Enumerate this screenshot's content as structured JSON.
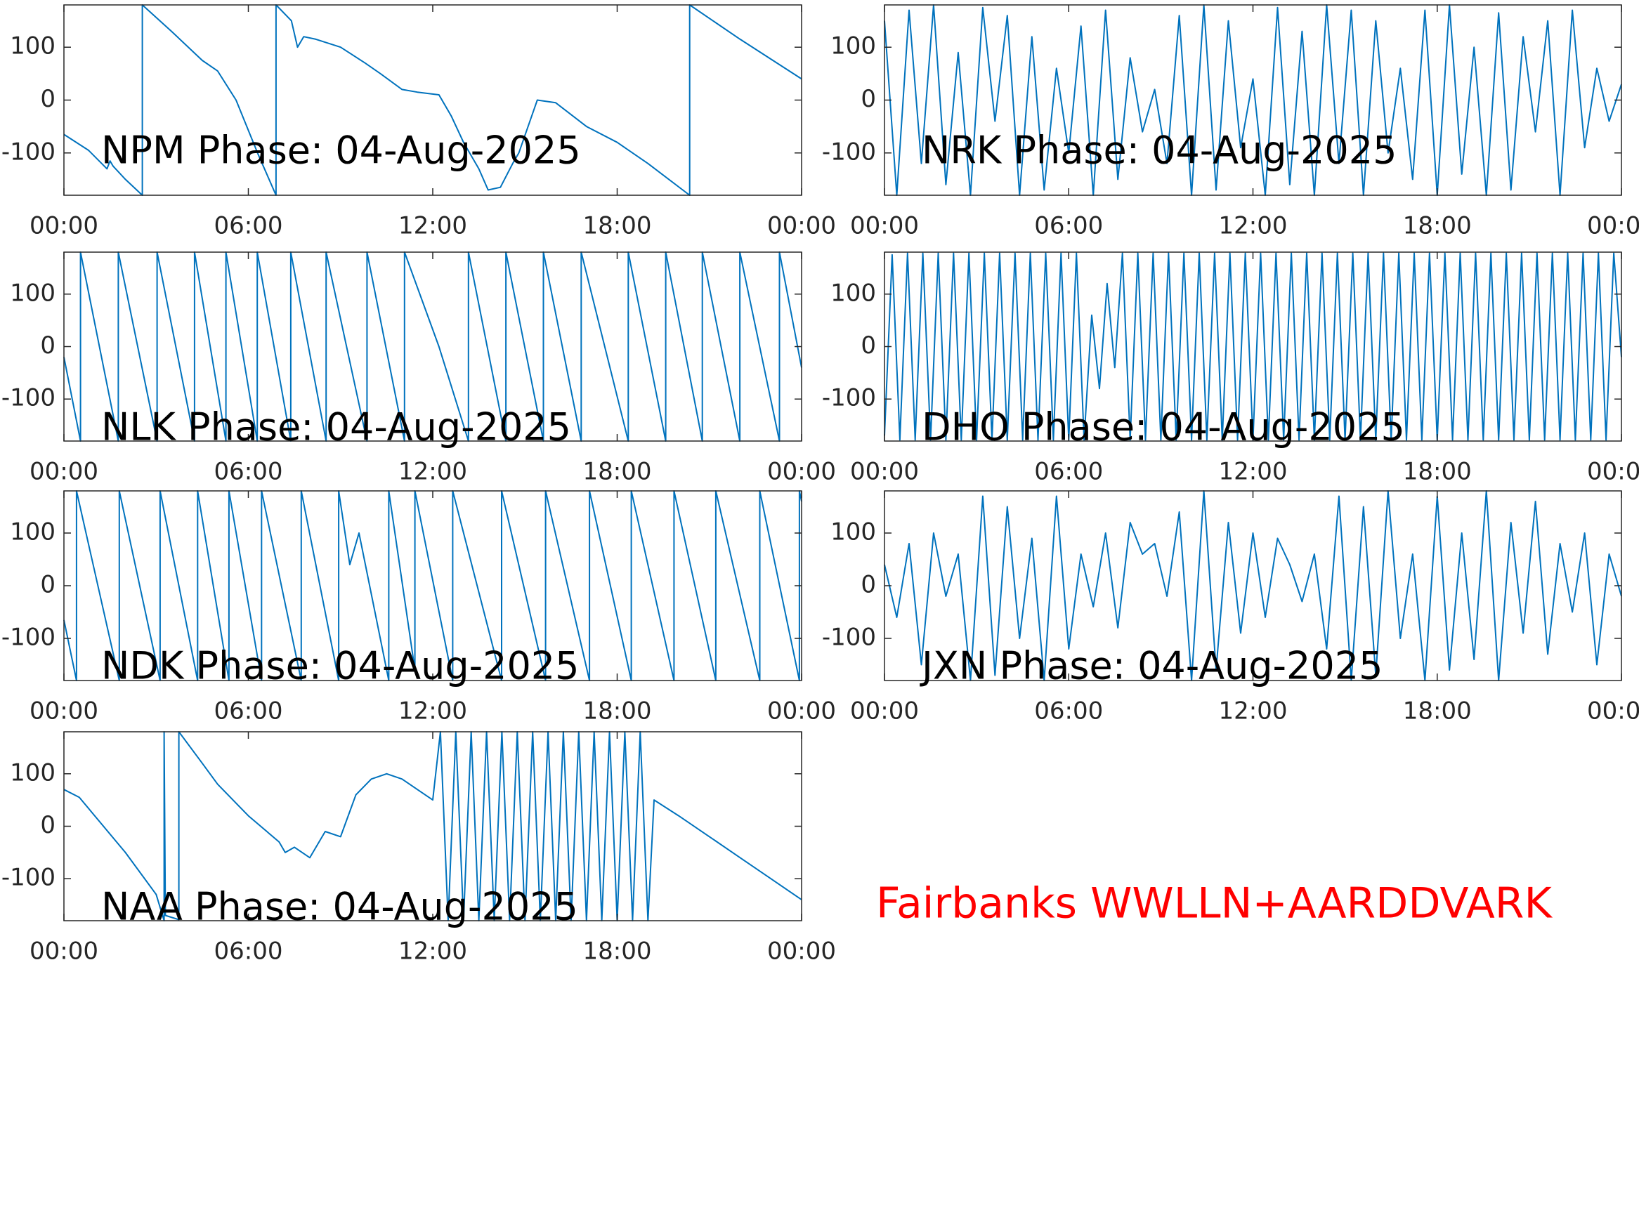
{
  "caption": "Fairbanks WWLLN+AARDDVARK",
  "chart_data": [
    {
      "type": "line",
      "title": "NPM Phase: 04-Aug-2025",
      "color": "#0072bd",
      "xlim": [
        0,
        24
      ],
      "ylim": [
        -180,
        180
      ],
      "xticks": [
        {
          "value": 0,
          "label": "00:00"
        },
        {
          "value": 6,
          "label": "06:00"
        },
        {
          "value": 12,
          "label": "12:00"
        },
        {
          "value": 18,
          "label": "18:00"
        },
        {
          "value": 24,
          "label": "00:00"
        }
      ],
      "yticks": [
        -100,
        0,
        100
      ],
      "x": [
        0,
        0.8,
        1.4,
        1.5,
        1.6,
        2.0,
        2.55,
        2.55,
        3.5,
        4.5,
        5.0,
        5.6,
        6.3,
        6.9,
        6.9,
        7.4,
        7.6,
        7.8,
        8.2,
        9.0,
        9.8,
        10.3,
        11.0,
        11.5,
        12.2,
        12.6,
        13.0,
        13.5,
        13.8,
        14.2,
        14.6,
        14.8,
        15.4,
        16.0,
        17.0,
        18.0,
        19.0,
        20.36,
        20.36,
        22.0,
        24
      ],
      "values": [
        -65,
        -95,
        -130,
        -115,
        -125,
        -150,
        -180,
        180,
        130,
        75,
        55,
        0,
        -100,
        -180,
        180,
        150,
        100,
        120,
        115,
        100,
        70,
        50,
        20,
        15,
        10,
        -30,
        -80,
        -130,
        -170,
        -165,
        -120,
        -100,
        0,
        -5,
        -50,
        -80,
        -120,
        -180,
        180,
        115,
        40
      ]
    },
    {
      "type": "line",
      "title": "NRK Phase: 04-Aug-2025",
      "color": "#0072bd",
      "xlim": [
        0,
        24
      ],
      "ylim": [
        -180,
        180
      ],
      "xticks": [
        {
          "value": 0,
          "label": "00:00"
        },
        {
          "value": 6,
          "label": "06:00"
        },
        {
          "value": 12,
          "label": "12:00"
        },
        {
          "value": 18,
          "label": "18:00"
        },
        {
          "value": 24,
          "label": "00:00"
        }
      ],
      "yticks": [
        -100,
        0,
        100
      ],
      "x": [
        0,
        0.4,
        0.8,
        1.2,
        1.6,
        2,
        2.4,
        2.8,
        3.2,
        3.6,
        4,
        4.4,
        4.8,
        5.2,
        5.6,
        6,
        6.4,
        6.8,
        7.2,
        7.6,
        8,
        8.4,
        8.8,
        9.2,
        9.6,
        10,
        10.4,
        10.8,
        11.2,
        11.6,
        12,
        12.4,
        12.8,
        13.2,
        13.6,
        14,
        14.4,
        14.8,
        15.2,
        15.6,
        16,
        16.4,
        16.8,
        17.2,
        17.6,
        18,
        18.4,
        18.8,
        19.2,
        19.6,
        20,
        20.4,
        20.8,
        21.2,
        21.6,
        22,
        22.4,
        22.8,
        23.2,
        23.6,
        24
      ],
      "values": [
        150,
        -180,
        170,
        -120,
        180,
        -160,
        90,
        -180,
        175,
        -40,
        160,
        -180,
        120,
        -170,
        60,
        -100,
        140,
        -180,
        170,
        -150,
        80,
        -60,
        20,
        -120,
        160,
        -180,
        180,
        -170,
        150,
        -90,
        40,
        -180,
        175,
        -160,
        130,
        -180,
        180,
        -120,
        170,
        -180,
        150,
        -100,
        60,
        -150,
        170,
        -180,
        180,
        -140,
        100,
        -180,
        165,
        -170,
        120,
        -60,
        150,
        -180,
        170,
        -90,
        60,
        -40,
        30
      ]
    },
    {
      "type": "line",
      "title": "NLK Phase: 04-Aug-2025",
      "color": "#0072bd",
      "xlim": [
        0,
        24
      ],
      "ylim": [
        -180,
        180
      ],
      "xticks": [
        {
          "value": 0,
          "label": "00:00"
        },
        {
          "value": 6,
          "label": "06:00"
        },
        {
          "value": 12,
          "label": "12:00"
        },
        {
          "value": 18,
          "label": "18:00"
        },
        {
          "value": 24,
          "label": "00:00"
        }
      ],
      "yticks": [
        -100,
        0,
        100
      ],
      "x": [
        0,
        0.54,
        0.54,
        1.77,
        1.77,
        3.03,
        3.03,
        4.25,
        4.25,
        5.27,
        5.27,
        6.29,
        6.29,
        7.38,
        7.38,
        8.53,
        8.53,
        9.86,
        9.86,
        11.08,
        11.08,
        12.2,
        13.16,
        13.16,
        14.38,
        14.38,
        15.6,
        15.6,
        16.83,
        16.83,
        18.36,
        18.36,
        19.58,
        19.58,
        20.77,
        20.77,
        21.99,
        21.99,
        23.28,
        23.28,
        24
      ],
      "values": [
        -20,
        -180,
        180,
        -180,
        180,
        -180,
        180,
        -180,
        180,
        -180,
        180,
        -180,
        180,
        -180,
        180,
        -180,
        180,
        -180,
        180,
        -180,
        180,
        0,
        -180,
        180,
        -180,
        180,
        -180,
        180,
        -180,
        180,
        -180,
        180,
        -180,
        180,
        -180,
        180,
        -180,
        180,
        -180,
        180,
        -40
      ]
    },
    {
      "type": "line",
      "title": "DHO Phase: 04-Aug-2025",
      "color": "#0072bd",
      "xlim": [
        0,
        24
      ],
      "ylim": [
        -180,
        180
      ],
      "xticks": [
        {
          "value": 0,
          "label": "00:00"
        },
        {
          "value": 6,
          "label": "06:00"
        },
        {
          "value": 12,
          "label": "12:00"
        },
        {
          "value": 18,
          "label": "18:00"
        },
        {
          "value": 24,
          "label": "00:00"
        }
      ],
      "yticks": [
        -100,
        0,
        100
      ],
      "x": [
        0,
        0.25,
        0.5,
        0.75,
        1,
        1.25,
        1.5,
        1.75,
        2,
        2.25,
        2.5,
        2.75,
        3,
        3.25,
        3.5,
        3.75,
        4,
        4.25,
        4.5,
        4.75,
        5,
        5.25,
        5.5,
        5.75,
        6,
        6.25,
        6.5,
        6.75,
        7,
        7.25,
        7.5,
        7.75,
        8,
        8.25,
        8.5,
        8.75,
        9,
        9.25,
        9.5,
        9.75,
        10,
        10.25,
        10.5,
        10.75,
        11,
        11.25,
        11.5,
        11.75,
        12,
        12.25,
        12.5,
        12.75,
        13,
        13.25,
        13.5,
        13.75,
        14,
        14.25,
        14.5,
        14.75,
        15,
        15.25,
        15.5,
        15.75,
        16,
        16.25,
        16.5,
        16.75,
        17,
        17.25,
        17.5,
        17.75,
        18,
        18.25,
        18.5,
        18.75,
        19,
        19.25,
        19.5,
        19.75,
        20,
        20.25,
        20.5,
        20.75,
        21,
        21.25,
        21.5,
        21.75,
        22,
        22.25,
        22.5,
        22.75,
        23,
        23.25,
        23.5,
        23.75,
        24
      ],
      "values": [
        -170,
        175,
        -178,
        178,
        -178,
        178,
        -178,
        178,
        -178,
        178,
        -178,
        178,
        -178,
        178,
        -178,
        178,
        -178,
        178,
        -178,
        178,
        -178,
        178,
        -178,
        178,
        -178,
        178,
        -178,
        60,
        -80,
        120,
        -40,
        178,
        -178,
        178,
        -178,
        178,
        -178,
        178,
        -178,
        178,
        -178,
        178,
        -178,
        178,
        -178,
        178,
        -178,
        178,
        -178,
        178,
        -178,
        178,
        -178,
        178,
        -178,
        178,
        -178,
        178,
        -178,
        178,
        -178,
        178,
        -178,
        178,
        -178,
        178,
        -178,
        178,
        -178,
        178,
        -178,
        178,
        -178,
        178,
        -178,
        178,
        -178,
        178,
        -178,
        178,
        -178,
        178,
        -178,
        178,
        -178,
        178,
        -178,
        178,
        -178,
        178,
        -178,
        178,
        -178,
        178,
        -178,
        178,
        -20
      ]
    },
    {
      "type": "line",
      "title": "NDK Phase: 04-Aug-2025",
      "color": "#0072bd",
      "xlim": [
        0,
        24
      ],
      "ylim": [
        -180,
        180
      ],
      "xticks": [
        {
          "value": 0,
          "label": "00:00"
        },
        {
          "value": 6,
          "label": "06:00"
        },
        {
          "value": 12,
          "label": "12:00"
        },
        {
          "value": 18,
          "label": "18:00"
        },
        {
          "value": 24,
          "label": "00:00"
        }
      ],
      "yticks": [
        -100,
        0,
        100
      ],
      "x": [
        0,
        0.41,
        0.41,
        1.8,
        1.8,
        3.13,
        3.13,
        4.35,
        4.35,
        5.37,
        5.37,
        6.43,
        6.43,
        7.72,
        7.72,
        8.94,
        8.94,
        9.3,
        9.6,
        10.57,
        10.57,
        11.42,
        11.42,
        12.65,
        12.65,
        14.24,
        14.24,
        15.67,
        15.67,
        17.1,
        17.1,
        18.46,
        18.46,
        19.85,
        19.85,
        21.21,
        21.21,
        22.64,
        22.64,
        23.93,
        23.93,
        24
      ],
      "values": [
        -65,
        -180,
        180,
        -180,
        180,
        -180,
        180,
        -180,
        180,
        -180,
        180,
        -180,
        180,
        -180,
        180,
        -180,
        180,
        40,
        100,
        -180,
        180,
        -160,
        180,
        -180,
        180,
        -180,
        180,
        -180,
        180,
        -180,
        180,
        -180,
        180,
        -180,
        180,
        -180,
        180,
        -180,
        180,
        -180,
        180,
        160
      ]
    },
    {
      "type": "line",
      "title": "JXN Phase: 04-Aug-2025",
      "color": "#0072bd",
      "xlim": [
        0,
        24
      ],
      "ylim": [
        -180,
        180
      ],
      "xticks": [
        {
          "value": 0,
          "label": "00:00"
        },
        {
          "value": 6,
          "label": "06:00"
        },
        {
          "value": 12,
          "label": "12:00"
        },
        {
          "value": 18,
          "label": "18:00"
        },
        {
          "value": 24,
          "label": "00:00"
        }
      ],
      "yticks": [
        -100,
        0,
        100
      ],
      "x": [
        0,
        0.4,
        0.8,
        1.2,
        1.6,
        2,
        2.4,
        2.8,
        3.2,
        3.6,
        4,
        4.4,
        4.8,
        5.2,
        5.6,
        6,
        6.4,
        6.8,
        7.2,
        7.6,
        8,
        8.4,
        8.8,
        9.2,
        9.6,
        10,
        10.4,
        10.8,
        11.2,
        11.6,
        12,
        12.4,
        12.8,
        13.2,
        13.6,
        14,
        14.4,
        14.8,
        15.2,
        15.6,
        16,
        16.4,
        16.8,
        17.2,
        17.6,
        18,
        18.4,
        18.8,
        19.2,
        19.6,
        20,
        20.4,
        20.8,
        21.2,
        21.6,
        22,
        22.4,
        22.8,
        23.2,
        23.6,
        24
      ],
      "values": [
        40,
        -60,
        80,
        -150,
        100,
        -20,
        60,
        -180,
        170,
        -170,
        150,
        -100,
        90,
        -180,
        170,
        -120,
        60,
        -40,
        100,
        -80,
        120,
        60,
        80,
        -20,
        140,
        -180,
        180,
        -160,
        120,
        -90,
        100,
        -60,
        90,
        40,
        -30,
        60,
        -120,
        170,
        -180,
        150,
        -170,
        180,
        -100,
        60,
        -180,
        170,
        -160,
        100,
        -140,
        180,
        -180,
        120,
        -90,
        160,
        -130,
        80,
        -50,
        100,
        -150,
        60,
        -20
      ]
    },
    {
      "type": "line",
      "title": "NAA Phase: 04-Aug-2025",
      "color": "#0072bd",
      "xlim": [
        0,
        24
      ],
      "ylim": [
        -180,
        180
      ],
      "xticks": [
        {
          "value": 0,
          "label": "00:00"
        },
        {
          "value": 6,
          "label": "06:00"
        },
        {
          "value": 12,
          "label": "12:00"
        },
        {
          "value": 18,
          "label": "18:00"
        },
        {
          "value": 24,
          "label": "00:00"
        }
      ],
      "yticks": [
        -100,
        0,
        100
      ],
      "x": [
        0,
        0.5,
        1,
        2,
        3,
        3.26,
        3.26,
        3.3,
        3.74,
        3.74,
        4.5,
        5,
        6,
        7,
        7.2,
        7.5,
        8,
        8.5,
        9,
        9.5,
        10,
        10.5,
        11,
        11.5,
        12,
        12.25,
        12.5,
        12.75,
        13,
        13.25,
        13.5,
        13.75,
        14,
        14.25,
        14.5,
        14.75,
        15,
        15.25,
        15.5,
        15.75,
        16,
        16.25,
        16.5,
        16.75,
        17,
        17.25,
        17.5,
        17.75,
        18,
        18.25,
        18.5,
        18.75,
        19,
        19.2,
        20,
        21,
        22,
        23,
        24
      ],
      "values": [
        70,
        55,
        20,
        -50,
        -130,
        -180,
        180,
        -170,
        -178,
        180,
        120,
        80,
        20,
        -30,
        -50,
        -40,
        -60,
        -10,
        -20,
        60,
        90,
        100,
        90,
        70,
        50,
        180,
        -180,
        180,
        -180,
        180,
        -180,
        180,
        -180,
        180,
        -180,
        180,
        -180,
        180,
        -180,
        180,
        -180,
        180,
        -180,
        180,
        -180,
        180,
        -180,
        180,
        -180,
        180,
        -180,
        180,
        -180,
        50,
        20,
        -20,
        -60,
        -100,
        -140
      ]
    }
  ]
}
